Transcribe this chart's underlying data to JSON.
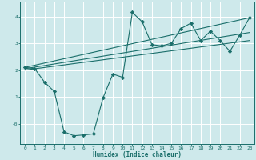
{
  "xlabel": "Humidex (Indice chaleur)",
  "ylabel": "",
  "background_color": "#cee9eb",
  "grid_color": "#ffffff",
  "line_color": "#1a6e6a",
  "xlim": [
    -0.5,
    23.5
  ],
  "ylim": [
    -0.75,
    4.55
  ],
  "xticks": [
    0,
    1,
    2,
    3,
    4,
    5,
    6,
    7,
    8,
    9,
    10,
    11,
    12,
    13,
    14,
    15,
    16,
    17,
    18,
    19,
    20,
    21,
    22,
    23
  ],
  "yticks": [
    0,
    1,
    2,
    3,
    4
  ],
  "ytick_labels": [
    "-0",
    "1",
    "2",
    "3",
    "4"
  ],
  "series": [
    {
      "x": [
        0,
        1,
        2,
        3,
        4,
        5,
        6,
        7,
        8,
        9,
        10,
        11,
        12,
        13,
        14,
        15,
        16,
        17,
        18,
        19,
        20,
        21,
        22,
        23
      ],
      "y": [
        2.1,
        2.05,
        1.55,
        1.2,
        -0.3,
        -0.45,
        -0.42,
        -0.38,
        0.97,
        1.85,
        1.73,
        4.15,
        3.8,
        2.95,
        2.9,
        3.0,
        3.55,
        3.75,
        3.1,
        3.45,
        3.1,
        2.7,
        3.3,
        3.95
      ],
      "marker": "D",
      "markersize": 2.2
    },
    {
      "x": [
        0,
        23
      ],
      "y": [
        2.05,
        3.4
      ]
    },
    {
      "x": [
        0,
        23
      ],
      "y": [
        2.1,
        3.95
      ]
    },
    {
      "x": [
        0,
        23
      ],
      "y": [
        2.0,
        3.1
      ]
    }
  ]
}
